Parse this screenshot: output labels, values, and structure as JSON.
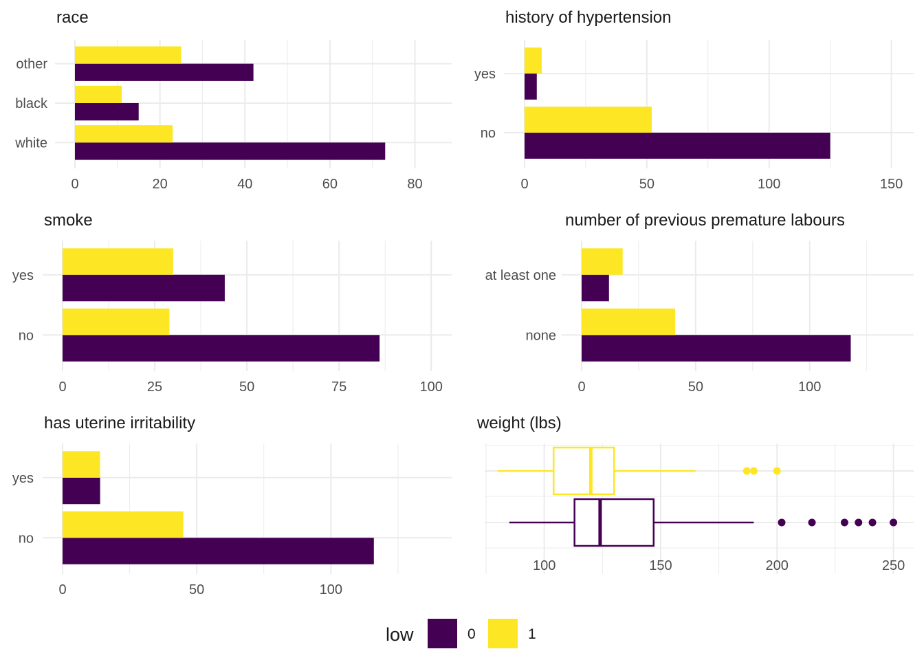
{
  "colors": {
    "0": "#440154",
    "1": "#FDE725"
  },
  "legend": {
    "title": "low",
    "entries": [
      {
        "label": "0",
        "key": "0"
      },
      {
        "label": "1",
        "key": "1"
      }
    ]
  },
  "chart_data": [
    {
      "id": "race",
      "type": "bar",
      "orientation": "horizontal",
      "title": "race",
      "categories": [
        "white",
        "black",
        "other"
      ],
      "series": [
        {
          "name": "0",
          "values": [
            73,
            15,
            42
          ]
        },
        {
          "name": "1",
          "values": [
            23,
            11,
            25
          ]
        }
      ],
      "xlim": [
        0,
        88
      ],
      "xticks": [
        0,
        20,
        40,
        60,
        80
      ],
      "minor": [
        10,
        30,
        50,
        70
      ]
    },
    {
      "id": "ht",
      "type": "bar",
      "orientation": "horizontal",
      "title": "history of hypertension",
      "categories": [
        "no",
        "yes"
      ],
      "series": [
        {
          "name": "0",
          "values": [
            125,
            5
          ]
        },
        {
          "name": "1",
          "values": [
            52,
            7
          ]
        }
      ],
      "xlim": [
        0,
        158
      ],
      "xticks": [
        0,
        50,
        100,
        150
      ],
      "minor": [
        25,
        75,
        125
      ]
    },
    {
      "id": "smoke",
      "type": "bar",
      "orientation": "horizontal",
      "title": "smoke",
      "categories": [
        "no",
        "yes"
      ],
      "series": [
        {
          "name": "0",
          "values": [
            86,
            44
          ]
        },
        {
          "name": "1",
          "values": [
            29,
            30
          ]
        }
      ],
      "xlim": [
        0,
        105
      ],
      "xticks": [
        0,
        25,
        50,
        75,
        100
      ],
      "minor": [
        12.5,
        37.5,
        62.5,
        87.5
      ]
    },
    {
      "id": "ptl",
      "type": "bar",
      "orientation": "horizontal",
      "title": "number of previous premature labours",
      "categories": [
        "none",
        "at least one"
      ],
      "series": [
        {
          "name": "0",
          "values": [
            118,
            12
          ]
        },
        {
          "name": "1",
          "values": [
            41,
            18
          ]
        }
      ],
      "xlim": [
        0,
        126
      ],
      "xticks": [
        0,
        50,
        100
      ],
      "minor": [
        25,
        75,
        125
      ]
    },
    {
      "id": "ui",
      "type": "bar",
      "orientation": "horizontal",
      "title": "has uterine irritability",
      "categories": [
        "no",
        "yes"
      ],
      "series": [
        {
          "name": "0",
          "values": [
            116,
            14
          ]
        },
        {
          "name": "1",
          "values": [
            45,
            14
          ]
        }
      ],
      "xlim": [
        0,
        145
      ],
      "xticks": [
        0,
        50,
        100
      ],
      "minor": [
        25,
        75,
        125
      ]
    },
    {
      "id": "lwt",
      "type": "boxplot",
      "orientation": "horizontal",
      "title": "weight (lbs)",
      "xlim": [
        75,
        259
      ],
      "xticks": [
        100,
        150,
        200,
        250
      ],
      "minor": [
        75,
        125,
        175,
        225
      ],
      "groups": [
        {
          "name": "0",
          "whisker_low": 85,
          "q1": 113,
          "median": 124,
          "q3": 147,
          "whisker_high": 190,
          "outliers": [
            202,
            215,
            229,
            235,
            241,
            250
          ]
        },
        {
          "name": "1",
          "whisker_low": 80,
          "q1": 104,
          "median": 120,
          "q3": 130,
          "whisker_high": 165,
          "outliers": [
            187,
            190,
            200
          ]
        }
      ]
    }
  ]
}
